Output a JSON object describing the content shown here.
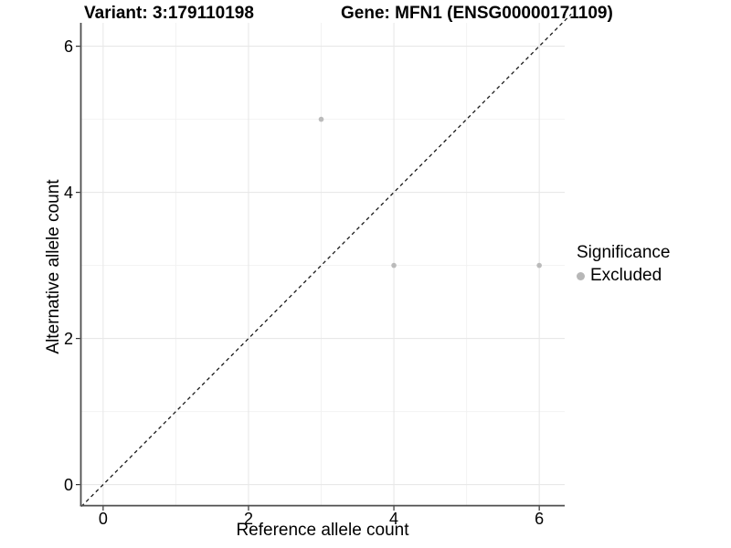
{
  "chart_data": {
    "type": "scatter",
    "title_variant": "Variant: 3:179110198",
    "title_gene": "Gene: MFN1 (ENSG00000171109)",
    "xlabel": "Reference allele count",
    "ylabel": "Alternative allele count",
    "xlim": [
      -0.3,
      6.35
    ],
    "ylim": [
      -0.28,
      6.32
    ],
    "x_ticks": [
      0,
      2,
      4,
      6
    ],
    "x_minor_ticks": [
      1,
      3,
      5
    ],
    "y_ticks": [
      0,
      2,
      4,
      6
    ],
    "y_minor_ticks": [
      1,
      3,
      5
    ],
    "grid": true,
    "legend": {
      "title": "Significance",
      "position": "right",
      "items": [
        {
          "label": "Excluded",
          "color": "#b7b7b7"
        }
      ]
    },
    "series": [
      {
        "name": "Excluded",
        "color": "#b7b7b7",
        "points": [
          {
            "x": 3,
            "y": 5
          },
          {
            "x": 4,
            "y": 3
          },
          {
            "x": 6,
            "y": 3
          }
        ]
      }
    ],
    "reference_line": {
      "kind": "identity",
      "slope": 1,
      "intercept": 0,
      "style": "dashed",
      "color": "#1a1a1a"
    }
  },
  "colors": {
    "background": "#ffffff",
    "grid_major": "#e8e8e8",
    "grid_minor": "#f2f2f2",
    "axis_line": "#4f4f4f",
    "tick_mark": "#333333",
    "tick_text": "#000000",
    "point": "#b7b7b7"
  }
}
